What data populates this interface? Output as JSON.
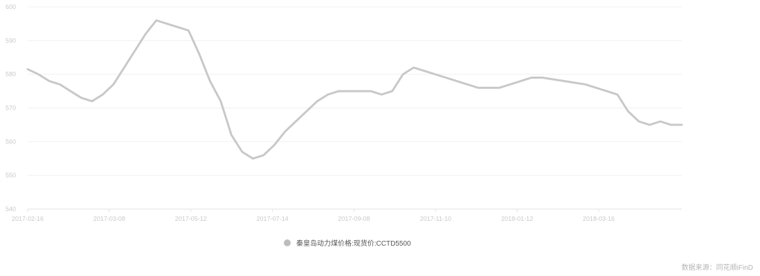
{
  "chart_data": {
    "type": "line",
    "title": "",
    "xlabel": "",
    "ylabel": "",
    "ylim": [
      540,
      600
    ],
    "y_ticks": [
      "540",
      "550",
      "560",
      "570",
      "580",
      "590",
      "600"
    ],
    "x_ticks": [
      "2017-02-16",
      "2017-03-08",
      "2017-05-12",
      "2017-07-14",
      "2017-09-08",
      "2017-11-10",
      "2018-01-12",
      "2018-03-16"
    ],
    "grid": true,
    "legend_position": "bottom",
    "series": [
      {
        "name": "秦皇岛动力煤价格:现货价:CCTD5500",
        "color": "#c8c8c8",
        "points": [
          [
            0,
            581.5
          ],
          [
            5,
            580
          ],
          [
            10,
            578
          ],
          [
            15,
            577
          ],
          [
            20,
            575
          ],
          [
            25,
            573
          ],
          [
            30,
            572
          ],
          [
            35,
            574
          ],
          [
            40,
            577
          ],
          [
            45,
            582
          ],
          [
            50,
            587
          ],
          [
            55,
            592
          ],
          [
            60,
            596
          ],
          [
            65,
            595
          ],
          [
            70,
            594
          ],
          [
            75,
            593
          ],
          [
            80,
            586
          ],
          [
            85,
            578
          ],
          [
            90,
            572
          ],
          [
            95,
            562
          ],
          [
            100,
            557
          ],
          [
            105,
            555
          ],
          [
            110,
            556
          ],
          [
            115,
            559
          ],
          [
            120,
            563
          ],
          [
            125,
            566
          ],
          [
            130,
            569
          ],
          [
            135,
            572
          ],
          [
            140,
            574
          ],
          [
            145,
            575
          ],
          [
            150,
            575
          ],
          [
            155,
            575
          ],
          [
            160,
            575
          ],
          [
            165,
            574
          ],
          [
            170,
            575
          ],
          [
            175,
            580
          ],
          [
            180,
            582
          ],
          [
            185,
            581
          ],
          [
            190,
            580
          ],
          [
            195,
            579
          ],
          [
            200,
            578
          ],
          [
            205,
            577
          ],
          [
            210,
            576
          ],
          [
            215,
            576
          ],
          [
            220,
            576
          ],
          [
            225,
            577
          ],
          [
            230,
            578
          ],
          [
            235,
            579
          ],
          [
            240,
            579
          ],
          [
            245,
            578.5
          ],
          [
            250,
            578
          ],
          [
            255,
            577.5
          ],
          [
            260,
            577
          ],
          [
            265,
            576
          ],
          [
            270,
            575
          ],
          [
            275,
            574
          ],
          [
            280,
            569
          ],
          [
            285,
            566
          ],
          [
            290,
            565
          ],
          [
            295,
            566
          ],
          [
            300,
            565
          ],
          [
            305,
            565
          ]
        ]
      }
    ]
  },
  "source_text": "数据来源：同花顺iFinD"
}
